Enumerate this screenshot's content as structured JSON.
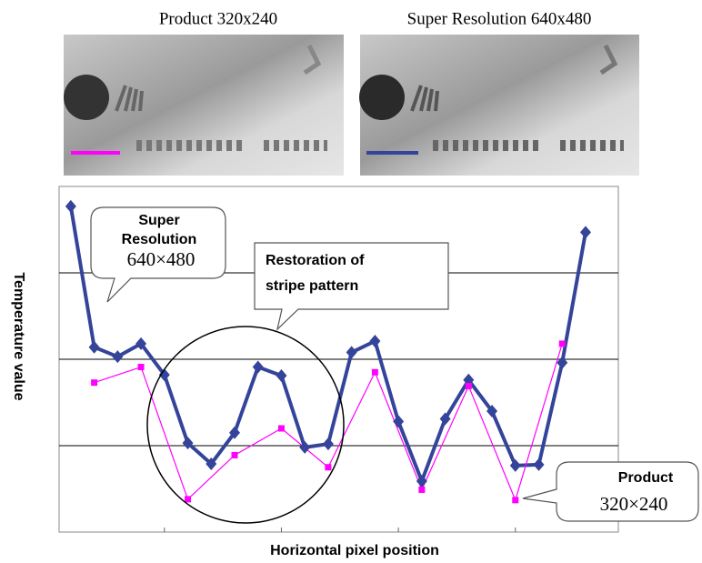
{
  "images": [
    {
      "caption": "Product 320x240"
    },
    {
      "caption": "Super Resolution 640x480"
    }
  ],
  "chart_data": {
    "type": "line",
    "x_label": "Horizontal pixel position",
    "y_label": "Temperature value",
    "xlim": [
      -0.5,
      23.4
    ],
    "ylim": [
      0,
      4
    ],
    "ygrid": [
      1,
      2,
      3
    ],
    "x_tick_marks": [
      4,
      9,
      14,
      19
    ],
    "series": [
      {
        "name": "Super Resolution 640x480",
        "color": "#34449a",
        "x": [
          0,
          1,
          2,
          3,
          4,
          5,
          6,
          7,
          8,
          9,
          10,
          11,
          12,
          13,
          14,
          15,
          16,
          17,
          18,
          19,
          20,
          21,
          22
        ],
        "values": [
          3.77,
          2.14,
          2.03,
          2.18,
          1.82,
          1.03,
          0.79,
          1.15,
          1.91,
          1.81,
          0.98,
          1.02,
          2.08,
          2.21,
          1.28,
          0.59,
          1.31,
          1.76,
          1.4,
          0.77,
          0.78,
          1.96,
          3.47
        ]
      },
      {
        "name": "Product 320x240",
        "color": "#ff00ff",
        "x": [
          1,
          3,
          5,
          7,
          9,
          11,
          13,
          15,
          17,
          19,
          21
        ],
        "values": [
          1.73,
          1.91,
          0.38,
          0.89,
          1.2,
          0.75,
          1.85,
          0.49,
          1.69,
          0.37,
          2.18
        ]
      }
    ],
    "annotations": [
      {
        "lines": [
          "Super",
          "Resolution"
        ],
        "sub": "640×480"
      },
      {
        "lines": [
          "Restoration of",
          "stripe pattern"
        ]
      },
      {
        "lines": [
          "Product"
        ],
        "sub": "320×240"
      }
    ]
  }
}
